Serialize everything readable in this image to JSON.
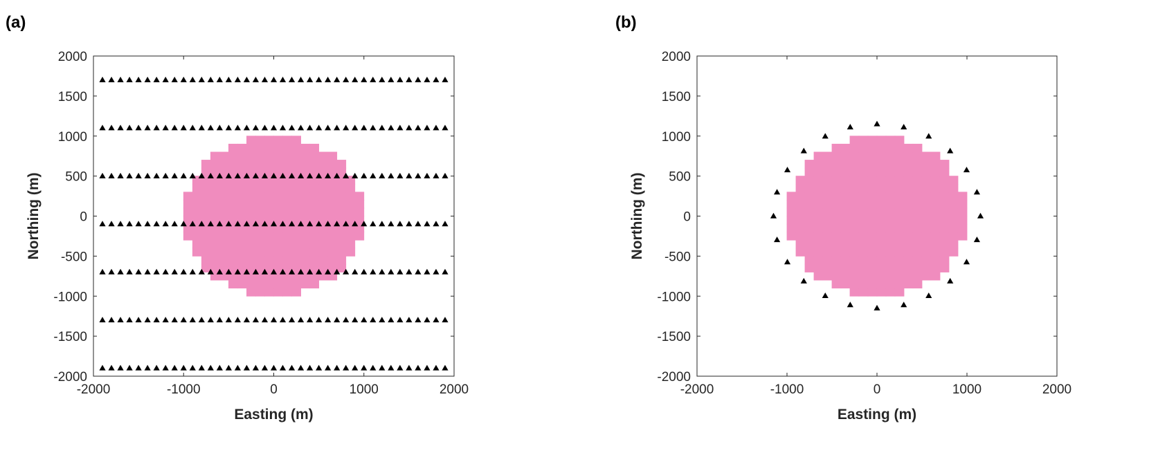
{
  "figure": {
    "panel_labels": [
      "(a)",
      "(b)"
    ]
  },
  "chart_data": [
    {
      "type": "scatter",
      "panel_label": "(a)",
      "xlabel": "Easting (m)",
      "ylabel": "Northing (m)",
      "xlim": [
        -2000,
        2000
      ],
      "ylim": [
        -2000,
        2000
      ],
      "xticks": [
        -2000,
        -1000,
        0,
        1000,
        2000
      ],
      "yticks": [
        -2000,
        -1500,
        -1000,
        -500,
        0,
        500,
        1000,
        1500,
        2000
      ],
      "grid": false,
      "legend": "none",
      "body": {
        "shape": "stepped-disc",
        "color": "#f08cbe",
        "cell_size": 100,
        "radius": 1000,
        "center": [
          0,
          0
        ]
      },
      "series": [
        {
          "marker": "triangle",
          "color": "#000000",
          "layout": "grid",
          "x_start": -1900,
          "x_end": 1900,
          "x_step": 100,
          "rows_y": [
            1700,
            1100,
            500,
            -100,
            -700,
            -1300,
            -1900
          ]
        }
      ]
    },
    {
      "type": "scatter",
      "panel_label": "(b)",
      "xlabel": "Easting (m)",
      "ylabel": "Northing (m)",
      "xlim": [
        -2000,
        2000
      ],
      "ylim": [
        -2000,
        2000
      ],
      "xticks": [
        -2000,
        -1000,
        0,
        1000,
        2000
      ],
      "yticks": [
        -2000,
        -1500,
        -1000,
        -500,
        0,
        500,
        1000,
        1500,
        2000
      ],
      "grid": false,
      "legend": "none",
      "body": {
        "shape": "stepped-disc",
        "color": "#f08cbe",
        "cell_size": 100,
        "radius": 1000,
        "center": [
          0,
          0
        ]
      },
      "series": [
        {
          "marker": "triangle",
          "color": "#000000",
          "layout": "ring",
          "ring_radius": 1150,
          "count": 24,
          "start_angle_deg": 0
        }
      ]
    }
  ]
}
